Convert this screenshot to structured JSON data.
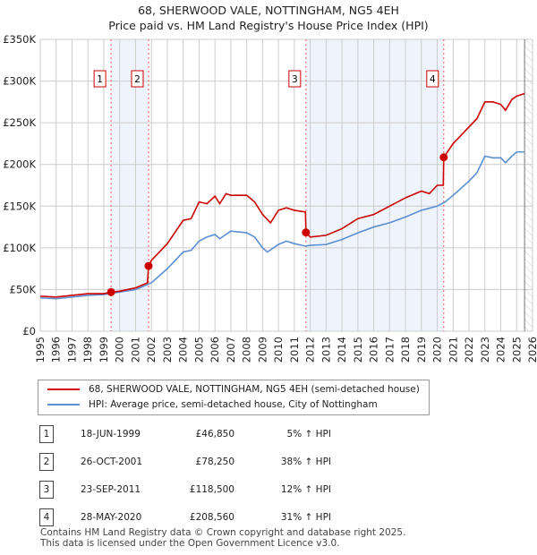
{
  "chart_data": {
    "type": "line",
    "title": "68, SHERWOOD VALE, NOTTINGHAM, NG5 4EH",
    "subtitle": "Price paid vs. HM Land Registry's House Price Index (HPI)",
    "xlim": [
      1995,
      2026
    ],
    "ylim": [
      0,
      350000
    ],
    "yticks": [
      {
        "v": 0,
        "label": "£0"
      },
      {
        "v": 50000,
        "label": "£50K"
      },
      {
        "v": 100000,
        "label": "£100K"
      },
      {
        "v": 150000,
        "label": "£150K"
      },
      {
        "v": 200000,
        "label": "£200K"
      },
      {
        "v": 250000,
        "label": "£250K"
      },
      {
        "v": 300000,
        "label": "£300K"
      },
      {
        "v": 350000,
        "label": "£350K"
      }
    ],
    "xticks": [
      "1995",
      "1996",
      "1997",
      "1998",
      "1999",
      "2000",
      "2001",
      "2002",
      "2003",
      "2004",
      "2005",
      "2006",
      "2007",
      "2008",
      "2009",
      "2010",
      "2011",
      "2012",
      "2013",
      "2014",
      "2015",
      "2016",
      "2017",
      "2018",
      "2019",
      "2020",
      "2021",
      "2022",
      "2023",
      "2024",
      "2025",
      "2026"
    ],
    "grid": true,
    "forecast_from": 2025.5,
    "series": [
      {
        "name": "68, SHERWOOD VALE, NOTTINGHAM, NG5 4EH (semi-detached house)",
        "color": "#cc0000",
        "x": [
          1995,
          1996,
          1997,
          1998,
          1999,
          1999.46,
          2000,
          2001,
          2001.75,
          2001.82,
          2002,
          2003,
          2004,
          2004.5,
          2005,
          2005.5,
          2006,
          2006.3,
          2006.7,
          2007,
          2008,
          2008.5,
          2009,
          2009.5,
          2010,
          2010.5,
          2011,
          2011.7,
          2011.73,
          2012,
          2013,
          2014,
          2015,
          2016,
          2017,
          2018,
          2019,
          2019.5,
          2020,
          2020.38,
          2020.41,
          2021,
          2022,
          2022.5,
          2023,
          2023.5,
          2024,
          2024.3,
          2024.7,
          2025,
          2025.5
        ],
        "y": [
          42000,
          41000,
          43000,
          45000,
          45000,
          46850,
          48000,
          52000,
          58000,
          78250,
          85000,
          105000,
          133000,
          135000,
          155000,
          153000,
          162000,
          153000,
          165000,
          163000,
          163000,
          155000,
          140000,
          130000,
          145000,
          148000,
          145000,
          143000,
          118500,
          113000,
          115000,
          123000,
          135000,
          140000,
          150000,
          160000,
          168000,
          165000,
          175000,
          175000,
          208560,
          225000,
          245000,
          255000,
          275000,
          275000,
          272000,
          265000,
          278000,
          282000,
          285000
        ]
      },
      {
        "name": "HPI: Average price, semi-detached house, City of Nottingham",
        "color": "#5b8fd0",
        "x": [
          1995,
          1996,
          1997,
          1998,
          1999,
          2000,
          2001,
          2002,
          2003,
          2004,
          2004.5,
          2005,
          2005.5,
          2006,
          2006.3,
          2007,
          2008,
          2008.5,
          2009,
          2009.3,
          2010,
          2010.5,
          2011,
          2011.7,
          2012,
          2013,
          2014,
          2015,
          2016,
          2017,
          2018,
          2019,
          2020,
          2020.5,
          2021,
          2022,
          2022.5,
          2023,
          2023.5,
          2024,
          2024.3,
          2024.7,
          2025,
          2025.5
        ],
        "y": [
          40000,
          39000,
          41000,
          43000,
          44000,
          47000,
          50000,
          58000,
          75000,
          95000,
          97000,
          108000,
          113000,
          116000,
          111000,
          120000,
          118000,
          113000,
          100000,
          95000,
          104000,
          108000,
          105000,
          102000,
          103000,
          104000,
          110000,
          118000,
          125000,
          130000,
          137000,
          145000,
          150000,
          155000,
          163000,
          180000,
          190000,
          210000,
          208000,
          208000,
          202000,
          210000,
          215000,
          215000
        ]
      }
    ],
    "sales": [
      {
        "n": "1",
        "date": "18-JUN-1999",
        "x": 1999.46,
        "price": 46850,
        "price_label": "£46,850",
        "hpi": "5% ↑ HPI"
      },
      {
        "n": "2",
        "date": "26-OCT-2001",
        "x": 2001.82,
        "price": 78250,
        "price_label": "£78,250",
        "hpi": "38% ↑ HPI"
      },
      {
        "n": "3",
        "date": "23-SEP-2011",
        "x": 2011.73,
        "price": 118500,
        "price_label": "£118,500",
        "hpi": "12% ↑ HPI"
      },
      {
        "n": "4",
        "date": "28-MAY-2020",
        "x": 2020.41,
        "price": 208560,
        "price_label": "£208,560",
        "hpi": "31% ↑ HPI"
      }
    ]
  },
  "footer": [
    "Contains HM Land Registry data © Crown copyright and database right 2025.",
    "This data is licensed under the Open Government Licence v3.0."
  ]
}
